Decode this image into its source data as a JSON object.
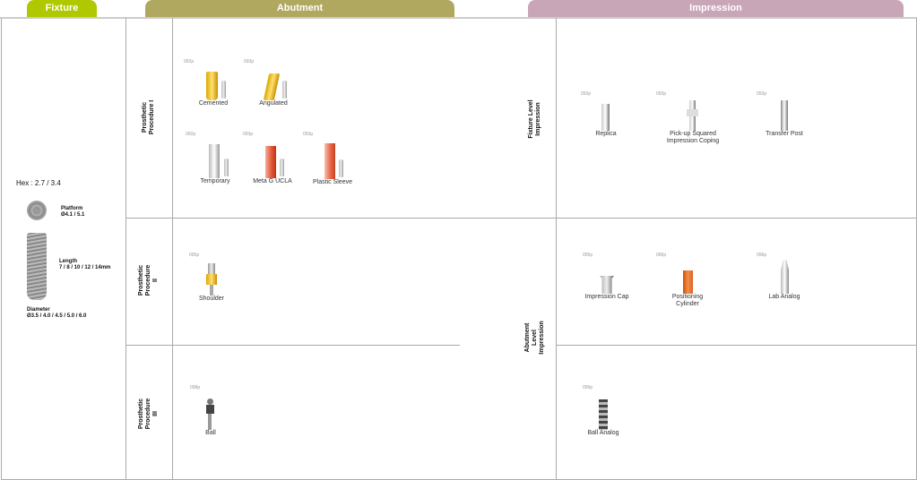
{
  "tabs": {
    "fixture": "Fixture",
    "abutment": "Abutment",
    "impression": "Impression"
  },
  "colors": {
    "fixture": "#b0c800",
    "abutment": "#b0a85f",
    "impression": "#c8a6b8"
  },
  "fixture": {
    "hex": "Hex : 2.7 / 3.4",
    "platform_label": "Platform",
    "platform_value": "Ø4.1 / 5.1",
    "length_label": "Length",
    "length_value": "7 / 8 / 10 / 12 / 14mm",
    "diameter_label": "Diameter",
    "diameter_value": "Ø3.5 / 4.0 / 4.5 / 5.0 / 6.0"
  },
  "abutment": {
    "rows": [
      {
        "label": "Prosthetic Procedure I",
        "items": [
          {
            "name": "Cemented",
            "page": "092p"
          },
          {
            "name": "Angulated",
            "page": "093p"
          },
          {
            "name": "Temporary",
            "page": "092p"
          },
          {
            "name": "Meta G UCLA",
            "page": "093p"
          },
          {
            "name": "Plastic Sleeve",
            "page": "093p"
          }
        ]
      },
      {
        "label": "Prosthetic Procedure II",
        "items": [
          {
            "name": "Shoulder",
            "page": "095p"
          }
        ]
      },
      {
        "label": "Prosthetic Procedure III",
        "items": [
          {
            "name": "Ball",
            "page": "098p"
          }
        ]
      }
    ]
  },
  "impression": {
    "rows": [
      {
        "label": "Fixture Level Impression",
        "items": [
          {
            "name": "Replica",
            "page": "093p"
          },
          {
            "name": "Pick-up Squared Impression Coping",
            "page": "093p"
          },
          {
            "name": "Transfer Post",
            "page": "093p"
          }
        ]
      },
      {
        "label": "Abutment Level Impression",
        "items": [
          {
            "name": "Impression Cap",
            "page": "095p"
          },
          {
            "name": "Positioning Cylinder",
            "page": "096p"
          },
          {
            "name": "Lab Analog",
            "page": "096p"
          },
          {
            "name": "Ball Analog",
            "page": "099p"
          }
        ]
      }
    ]
  }
}
